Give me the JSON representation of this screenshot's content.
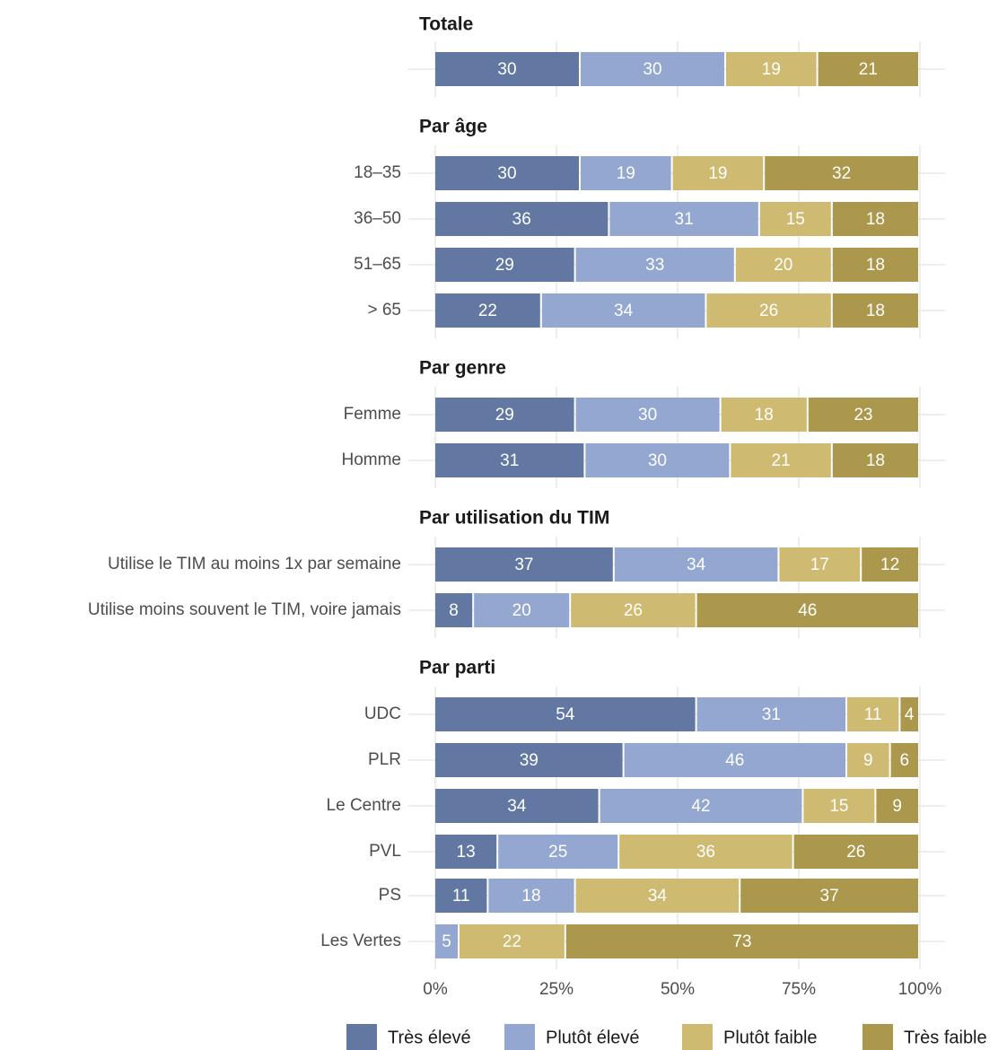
{
  "chart_data": {
    "type": "bar",
    "orientation": "horizontal",
    "stacked": true,
    "xlim": [
      0,
      100
    ],
    "x_ticks": [
      "0%",
      "25%",
      "50%",
      "75%",
      "100%"
    ],
    "grid": true,
    "legend_position": "bottom-right",
    "series": [
      {
        "name": "Très élevé",
        "color": "#6278a3"
      },
      {
        "name": "Plutôt élevé",
        "color": "#93a7d0"
      },
      {
        "name": "Plutôt faible",
        "color": "#cfba72"
      },
      {
        "name": "Très faible",
        "color": "#ac984d"
      }
    ],
    "groups": [
      {
        "title": "Totale",
        "rows": [
          {
            "label": "",
            "values": [
              30,
              30,
              19,
              21
            ]
          }
        ]
      },
      {
        "title": "Par âge",
        "rows": [
          {
            "label": "18–35",
            "values": [
              30,
              19,
              19,
              32
            ]
          },
          {
            "label": "36–50",
            "values": [
              36,
              31,
              15,
              18
            ]
          },
          {
            "label": "51–65",
            "values": [
              29,
              33,
              20,
              18
            ]
          },
          {
            "label": "> 65",
            "values": [
              22,
              34,
              26,
              18
            ]
          }
        ]
      },
      {
        "title": "Par genre",
        "rows": [
          {
            "label": "Femme",
            "values": [
              29,
              30,
              18,
              23
            ]
          },
          {
            "label": "Homme",
            "values": [
              31,
              30,
              21,
              18
            ]
          }
        ]
      },
      {
        "title": "Par utilisation du TIM",
        "rows": [
          {
            "label": "Utilise le TIM au moins 1x par semaine",
            "values": [
              37,
              34,
              17,
              12
            ]
          },
          {
            "label": "Utilise moins souvent le TIM, voire jamais",
            "values": [
              8,
              20,
              26,
              46
            ]
          }
        ]
      },
      {
        "title": "Par parti",
        "rows": [
          {
            "label": "UDC",
            "values": [
              54,
              31,
              11,
              4
            ]
          },
          {
            "label": "PLR",
            "values": [
              39,
              46,
              9,
              6
            ]
          },
          {
            "label": "Le Centre",
            "values": [
              34,
              42,
              15,
              9
            ]
          },
          {
            "label": "PVL",
            "values": [
              13,
              25,
              36,
              26
            ]
          },
          {
            "label": "PS",
            "values": [
              11,
              18,
              34,
              37
            ]
          },
          {
            "label": "Les Vertes",
            "values": [
              0,
              5,
              22,
              73
            ]
          }
        ]
      }
    ]
  }
}
